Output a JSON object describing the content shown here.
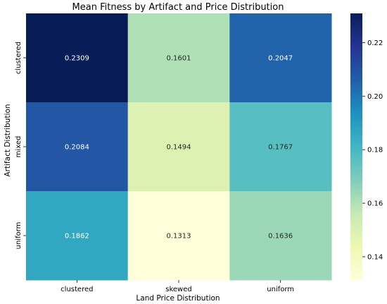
{
  "chart_data": {
    "type": "heatmap",
    "title": "Mean Fitness by Artifact and Price Distribution",
    "xlabel": "Land Price Distribution",
    "ylabel": "Artifact Distribution",
    "x_categories": [
      "clustered",
      "skewed",
      "uniform"
    ],
    "y_categories": [
      "clustered",
      "mixed",
      "uniform"
    ],
    "values": [
      [
        0.2309,
        0.1601,
        0.2047
      ],
      [
        0.2084,
        0.1494,
        0.1767
      ],
      [
        0.1862,
        0.1313,
        0.1636
      ]
    ],
    "value_labels": [
      [
        "0.2309",
        "0.1601",
        "0.2047"
      ],
      [
        "0.2084",
        "0.1494",
        "0.1767"
      ],
      [
        "0.1862",
        "0.1313",
        "0.1636"
      ]
    ],
    "colormap": "YlGnBu",
    "colorbar": {
      "vmin": 0.1313,
      "vmax": 0.2309,
      "ticks": [
        0.14,
        0.16,
        0.18,
        0.2,
        0.22
      ],
      "tick_labels": [
        "0.14",
        "0.16",
        "0.18",
        "0.20",
        "0.22"
      ]
    }
  }
}
